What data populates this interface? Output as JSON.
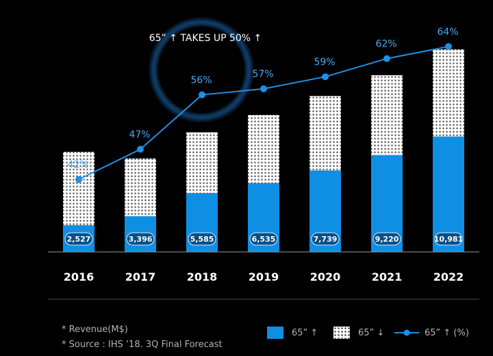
{
  "annotation": "65” ↑ TAKES UP 50% ↑",
  "chart_data": {
    "type": "bar",
    "categories": [
      "2016",
      "2017",
      "2018",
      "2019",
      "2020",
      "2021",
      "2022"
    ],
    "series": [
      {
        "name": "65” ↑",
        "values": [
          2527,
          3396,
          5585,
          6535,
          7739,
          9220,
          10981
        ],
        "color": "#0f8fe3"
      },
      {
        "name": "65” ↓",
        "values": [
          7000,
          5500,
          5800,
          6500,
          7100,
          7600,
          8300
        ],
        "color": "#ffffff"
      }
    ],
    "value_labels": [
      "2,527",
      "3,396",
      "5,585",
      "6,535",
      "7,739",
      "9,220",
      "10,981"
    ],
    "line_series": {
      "name": "65” ↑ (%)",
      "values": [
        42,
        47,
        56,
        57,
        59,
        62,
        64
      ],
      "labels": [
        "42%",
        "47%",
        "56%",
        "57%",
        "59%",
        "62%",
        "64%"
      ],
      "color": "#1e90e6"
    },
    "stacked": true,
    "ylim": [
      0,
      23000
    ],
    "line_ylim": [
      30,
      70
    ],
    "grid": false,
    "legend_position": "bottom-right",
    "title": "",
    "xlabel": "",
    "ylabel": ""
  },
  "footnotes": [
    "* Revenue(M$)",
    "* Source : IHS ’18. 3Q Final Forecast"
  ],
  "legend": {
    "item1": "65” ↑",
    "item2": "65” ↓",
    "item3": "65” ↑ (%)"
  },
  "colors": {
    "background": "#000000",
    "accent_blue": "#0f8fe3",
    "glow": "#1d6fbf",
    "label_text": "#4aa8f0"
  }
}
